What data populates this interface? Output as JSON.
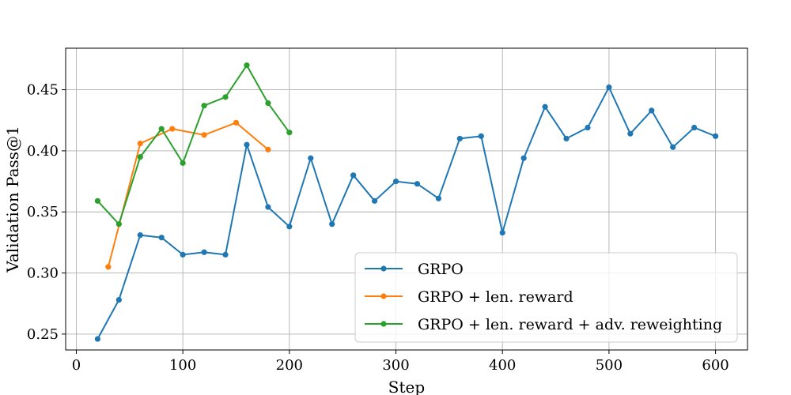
{
  "chart_data": {
    "type": "line",
    "xlabel": "Step",
    "ylabel": "Validation Pass@1",
    "xlim": [
      -10,
      630
    ],
    "ylim": [
      0.237,
      0.484
    ],
    "xticks": [
      0,
      100,
      200,
      300,
      400,
      500,
      600
    ],
    "yticks": [
      0.25,
      0.3,
      0.35,
      0.4,
      0.45
    ],
    "xtick_labels": [
      "0",
      "100",
      "200",
      "300",
      "400",
      "500",
      "600"
    ],
    "ytick_labels": [
      "0.25",
      "0.30",
      "0.35",
      "0.40",
      "0.45"
    ],
    "grid": true,
    "legend_position": "lower-right",
    "series": [
      {
        "name": "GRPO",
        "color": "#1f77b4",
        "x": [
          20,
          40,
          60,
          80,
          100,
          120,
          140,
          160,
          180,
          200,
          220,
          240,
          260,
          280,
          300,
          320,
          340,
          360,
          380,
          400,
          420,
          440,
          460,
          480,
          500,
          520,
          540,
          560,
          580,
          600
        ],
        "y": [
          0.246,
          0.278,
          0.331,
          0.329,
          0.315,
          0.317,
          0.315,
          0.405,
          0.354,
          0.338,
          0.394,
          0.34,
          0.38,
          0.359,
          0.375,
          0.373,
          0.361,
          0.41,
          0.412,
          0.333,
          0.394,
          0.436,
          0.41,
          0.419,
          0.452,
          0.414,
          0.433,
          0.403,
          0.419,
          0.412
        ]
      },
      {
        "name": "GRPO + len. reward",
        "color": "#ff7f0e",
        "x": [
          30,
          60,
          90,
          120,
          150,
          180
        ],
        "y": [
          0.305,
          0.406,
          0.418,
          0.413,
          0.423,
          0.401
        ]
      },
      {
        "name": "GRPO + len. reward + adv. reweighting",
        "color": "#2ca02c",
        "x": [
          20,
          40,
          60,
          80,
          100,
          120,
          140,
          160,
          180,
          200
        ],
        "y": [
          0.359,
          0.34,
          0.395,
          0.418,
          0.39,
          0.437,
          0.444,
          0.47,
          0.439,
          0.415
        ]
      }
    ]
  }
}
